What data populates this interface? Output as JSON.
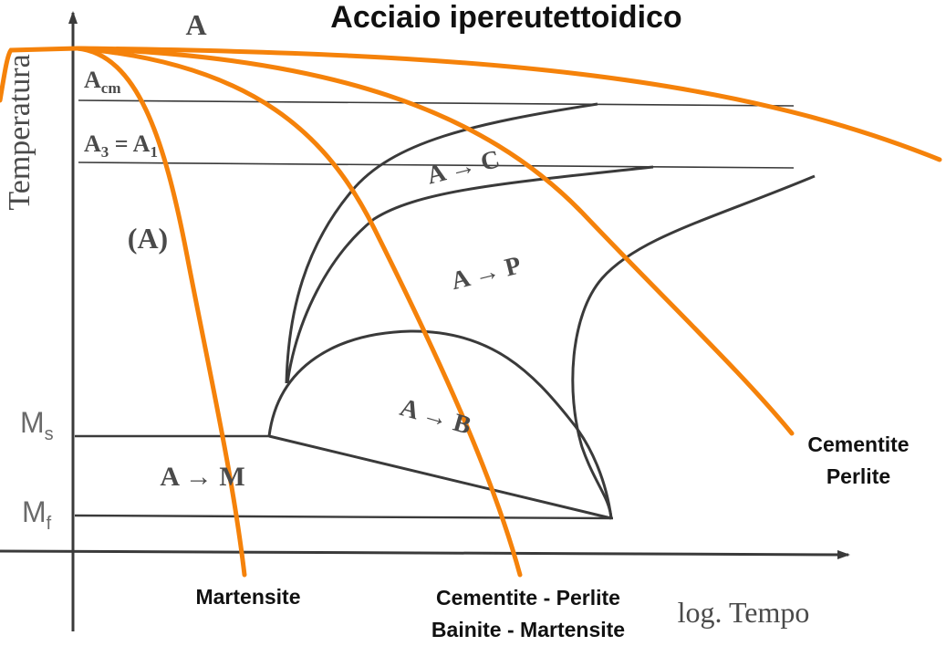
{
  "title": "Acciaio ipereutettoidico",
  "colors": {
    "cooling_curve": "#f5820a",
    "diagram_line": "#3a3a3a",
    "text_dark": "#4a4a4a",
    "text_black": "#111111"
  },
  "axes": {
    "y_label": "Temperatura",
    "x_label": "log. Tempo"
  },
  "region_labels": {
    "austenite_top": "A",
    "austenite_cooling": "(A)",
    "to_cementite": "A → C",
    "to_perlite": "A → P",
    "to_bainite": "A → B",
    "to_martensite": "A → M"
  },
  "temperature_lines": {
    "acm": {
      "base": "A",
      "sub": "cm"
    },
    "a3a1": {
      "prefix": "A",
      "sub": "3",
      "suffix": " = A",
      "sub2": "1"
    },
    "ms": {
      "base": "M",
      "sub": "s"
    },
    "mf": {
      "base": "M",
      "sub": "f"
    }
  },
  "cooling_results": {
    "curve1": "Martensite",
    "curve2_line1": "Cementite - Perlite",
    "curve2_line2": "Bainite - Martensite",
    "curve3_line1": "Cementite",
    "curve3_line2": "Perlite"
  }
}
